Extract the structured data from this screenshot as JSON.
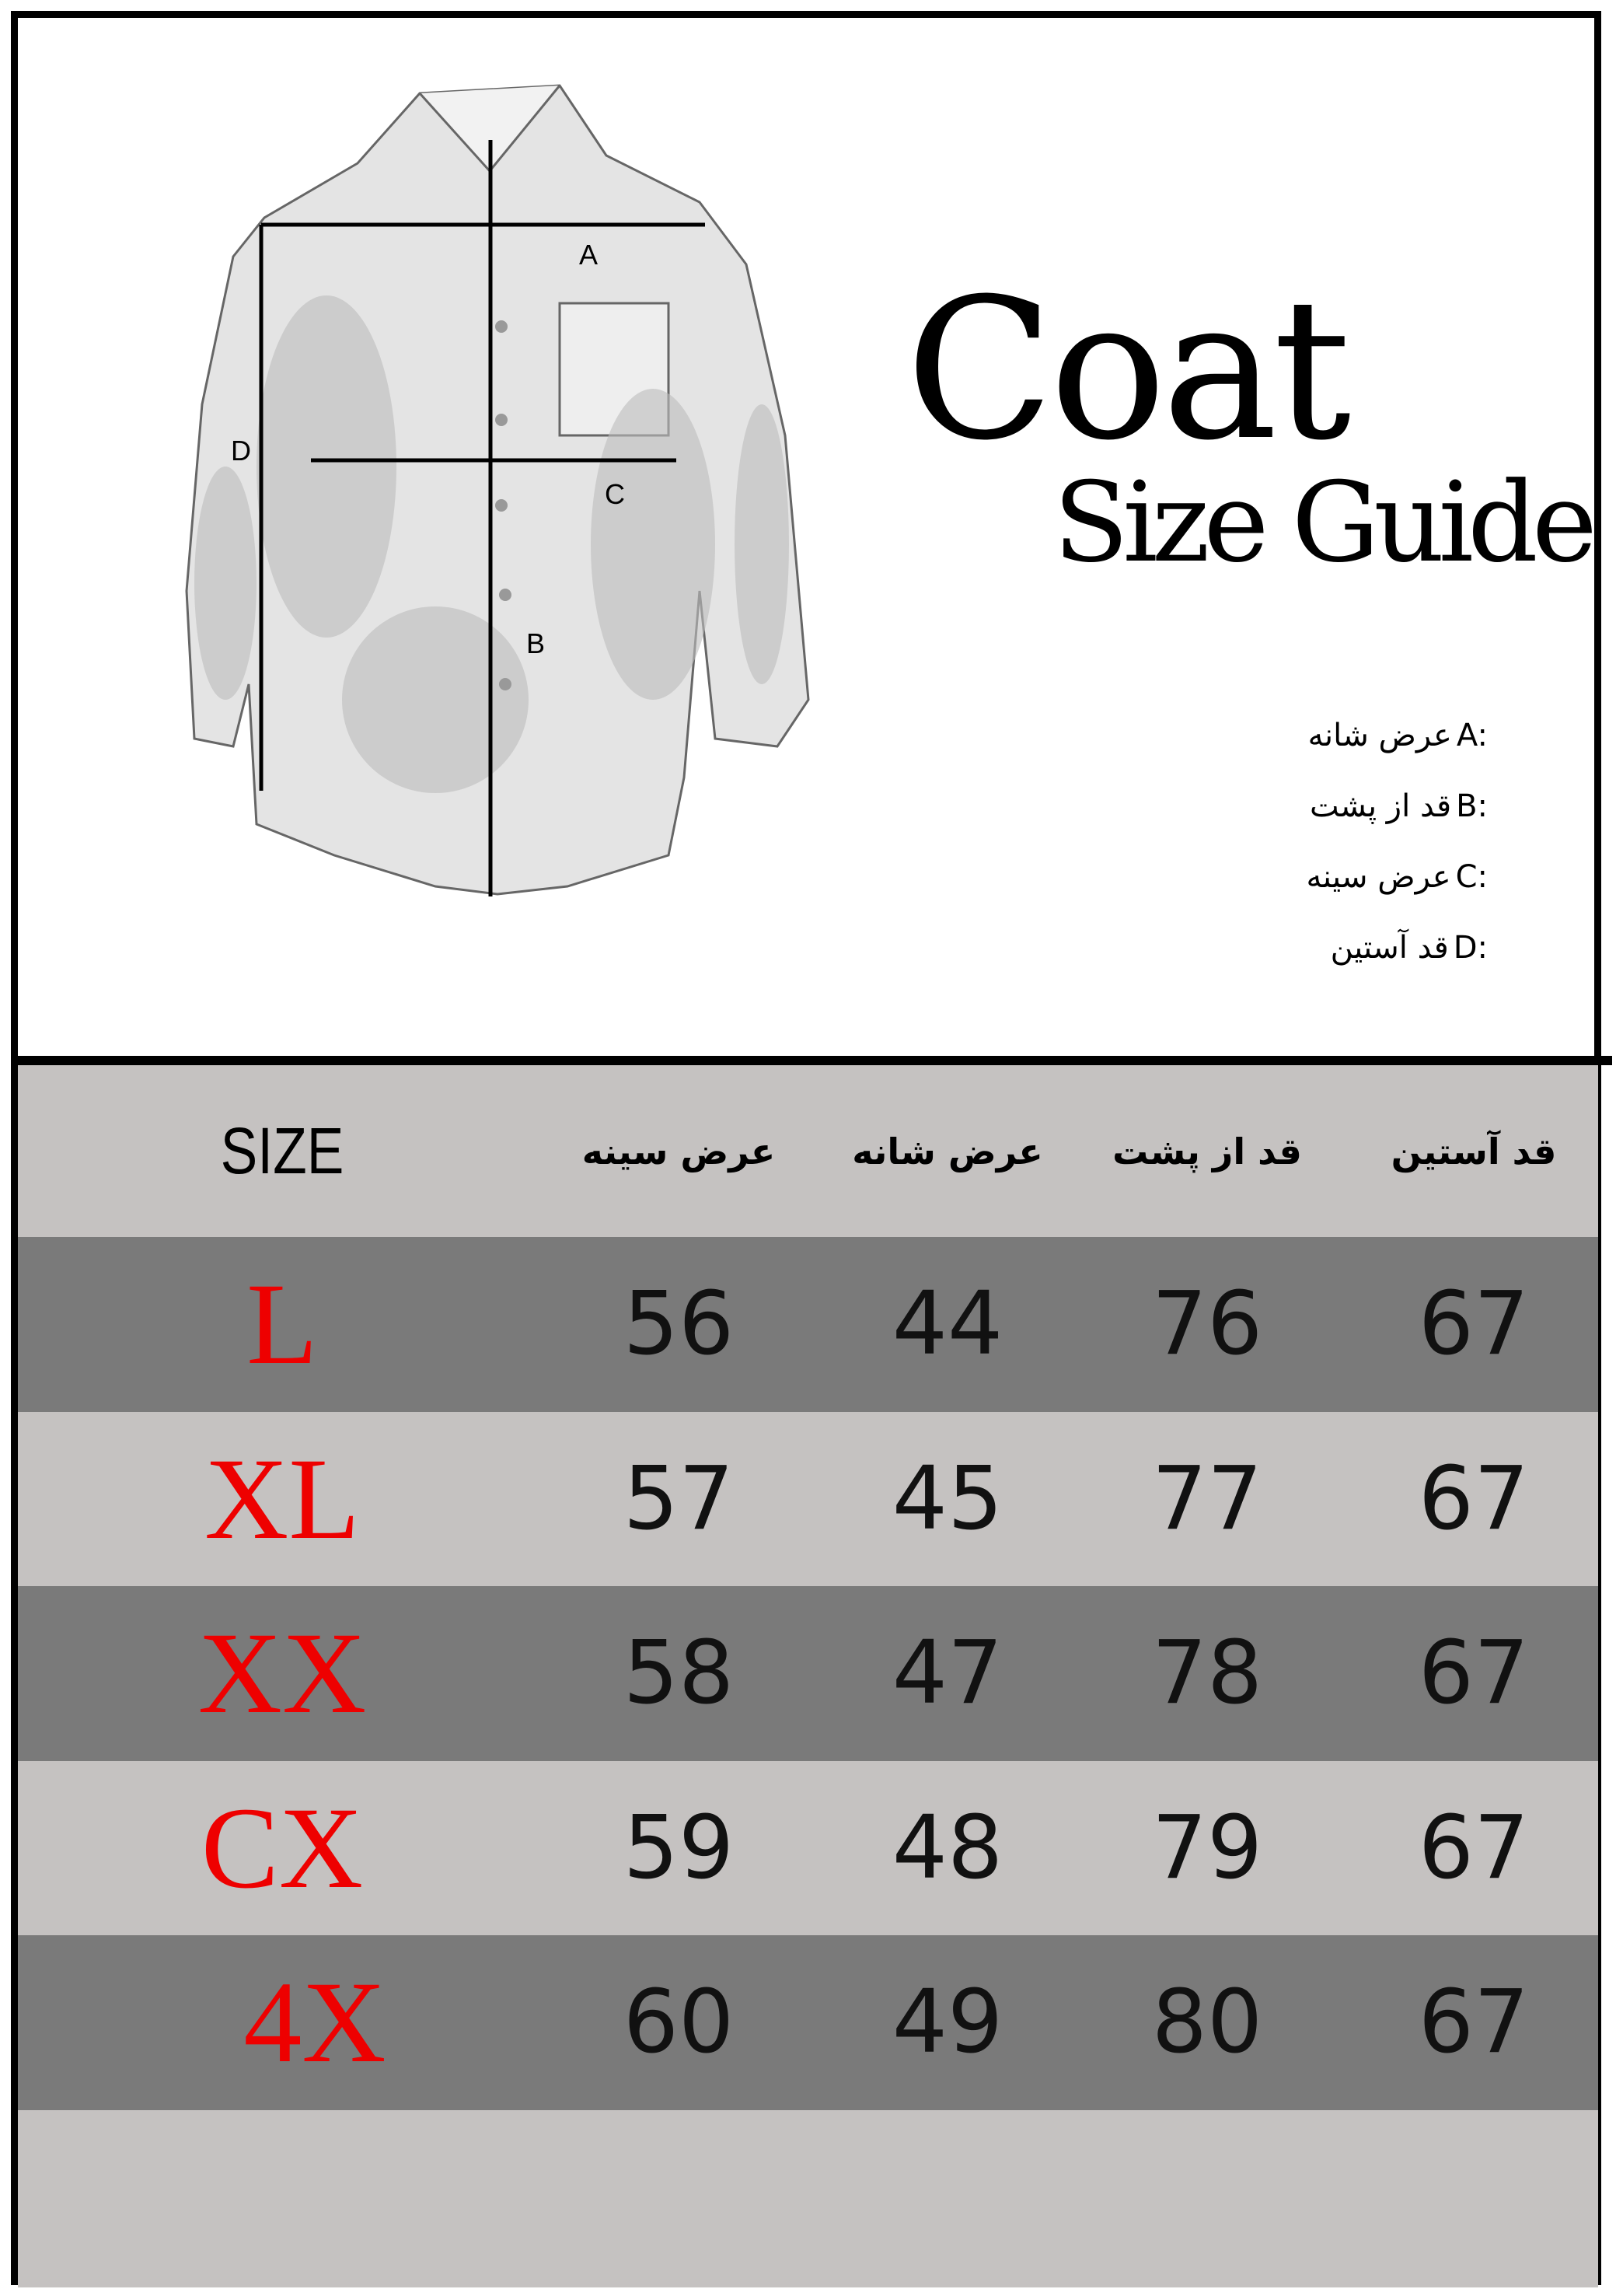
{
  "title": "Coat",
  "subtitle": "Size Guide",
  "diagram": {
    "markers": [
      "A",
      "B",
      "C",
      "D"
    ]
  },
  "legend": [
    {
      "letter": "A:",
      "label": "عرض شانه"
    },
    {
      "letter": "B:",
      "label": "قد از پشت"
    },
    {
      "letter": "C:",
      "label": "عرض سینه"
    },
    {
      "letter": "D:",
      "label": "قد آستین"
    }
  ],
  "table": {
    "headers": [
      "SIZE",
      "عرض سینه",
      "عرض شانه",
      "قد از پشت",
      "قد آستین"
    ],
    "rows": [
      [
        "L",
        "56",
        "44",
        "76",
        "67"
      ],
      [
        "XL",
        "57",
        "45",
        "77",
        "67"
      ],
      [
        "XX",
        "58",
        "47",
        "78",
        "67"
      ],
      [
        "CX",
        "59",
        "48",
        "79",
        "67"
      ],
      [
        "4X",
        "60",
        "49",
        "80",
        "67"
      ]
    ]
  },
  "colors": {
    "size_label": "#ee0000",
    "row_dark": "#7a7a7a",
    "row_light": "#c5c2c1"
  }
}
